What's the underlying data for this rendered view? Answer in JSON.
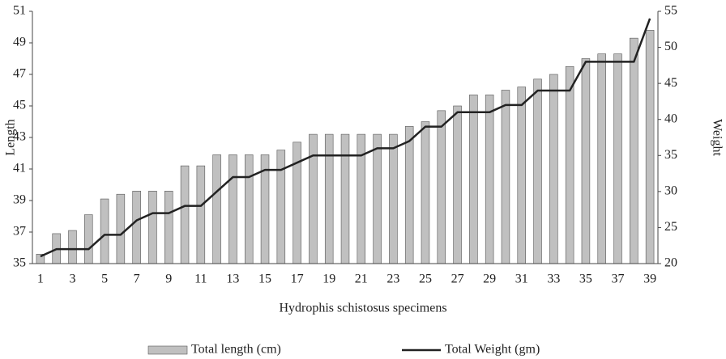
{
  "chart_data": {
    "type": "bar_line",
    "x_label": "Hydrophis schistosus specimens",
    "y_label": "Length",
    "y2_label": "Weight",
    "categories": [
      1,
      null,
      3,
      null,
      5,
      null,
      7,
      null,
      9,
      null,
      11,
      null,
      13,
      null,
      15,
      null,
      17,
      null,
      19,
      null,
      21,
      null,
      23,
      null,
      25,
      null,
      27,
      null,
      29,
      null,
      31,
      null,
      33,
      null,
      35,
      null,
      37,
      null,
      39
    ],
    "series": [
      {
        "name": "Total length (cm)",
        "type": "bar",
        "color": "#c0c0c0",
        "values": [
          35.6,
          36.9,
          37.1,
          38.1,
          39.1,
          39.4,
          39.6,
          39.6,
          39.6,
          41.2,
          41.2,
          41.9,
          41.9,
          41.9,
          41.9,
          42.2,
          42.7,
          43.2,
          43.2,
          43.2,
          43.2,
          43.2,
          43.2,
          43.7,
          44,
          44.7,
          45,
          45.7,
          45.7,
          46,
          46.2,
          46.7,
          47,
          47.5,
          48,
          48.3,
          48.3,
          49.3,
          49.8
        ]
      },
      {
        "name": "Total Weight (gm)",
        "type": "line",
        "axis": "y2",
        "color": "#222222",
        "values": [
          21,
          22,
          22,
          22,
          24,
          24,
          26,
          27,
          27,
          28,
          28,
          30,
          32,
          32,
          33,
          33,
          34,
          35,
          35,
          35,
          35,
          36,
          36,
          37,
          39,
          39,
          41,
          41,
          41,
          42,
          42,
          44,
          44,
          44,
          48,
          48,
          48,
          48,
          54
        ]
      }
    ],
    "ylim": [
      35,
      51
    ],
    "yticks": [
      35,
      37,
      39,
      41,
      43,
      45,
      47,
      49,
      51
    ],
    "y2lim": [
      20,
      55
    ],
    "y2ticks": [
      20,
      25,
      30,
      35,
      40,
      45,
      50,
      55
    ],
    "legend": "bottom"
  }
}
